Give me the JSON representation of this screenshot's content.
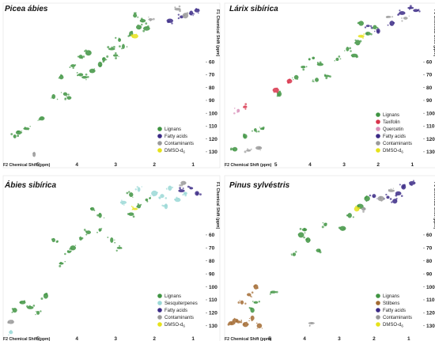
{
  "chart_data": [
    {
      "type": "scatter",
      "title": "Picea ábies",
      "xlabel": "F2 Chemical Shift (ppm)",
      "ylabel": "F1 Chemical Shift (ppm)",
      "xlim": [
        5.9,
        0.8
      ],
      "ylim": [
        18,
        135
      ],
      "x_ticks": [
        5,
        4,
        3,
        2,
        1
      ],
      "y_ticks": [
        60,
        70,
        80,
        90,
        100,
        110,
        120,
        130
      ],
      "legend_position": "bottom-right",
      "series": [
        {
          "name": "Lignans",
          "color": "#3f9442",
          "points": [
            [
              5.5,
              115
            ],
            [
              5.3,
              112
            ],
            [
              5.6,
              118
            ],
            [
              4.9,
              104
            ],
            [
              4.3,
              85
            ],
            [
              4.1,
              63
            ],
            [
              3.9,
              56
            ],
            [
              3.8,
              72
            ],
            [
              3.6,
              67
            ],
            [
              3.4,
              62
            ],
            [
              3.7,
              53
            ],
            [
              3.9,
              70
            ],
            [
              4.4,
              72
            ],
            [
              2.9,
              43
            ],
            [
              2.6,
              38
            ],
            [
              2.8,
              48
            ],
            [
              3.1,
              50
            ],
            [
              2.4,
              33
            ],
            [
              2.3,
              28
            ],
            [
              2.5,
              24
            ],
            [
              3.3,
              58
            ],
            [
              4.6,
              87
            ],
            [
              4.2,
              88
            ],
            [
              3.0,
              55
            ],
            [
              2.2,
              34
            ]
          ]
        },
        {
          "name": "Fatty acids",
          "color": "#3b2a86",
          "points": [
            [
              1.3,
              25
            ],
            [
              1.05,
              22
            ],
            [
              0.9,
              20
            ],
            [
              1.6,
              28
            ]
          ]
        },
        {
          "name": "Contaminants",
          "color": "#9a9a9a",
          "points": [
            [
              1.4,
              19
            ],
            [
              1.2,
              24
            ],
            [
              2.1,
              27
            ],
            [
              5.1,
              132
            ]
          ]
        },
        {
          "name": "DMSO-d6",
          "color": "#e6e21a",
          "points": [
            [
              2.5,
              40
            ]
          ]
        }
      ]
    },
    {
      "type": "scatter",
      "title": "Lárix sibírica",
      "xlabel": "F2 Chemical Shift (ppm)",
      "ylabel": "F1 Chemical Shift (ppm)",
      "xlim": [
        6.5,
        0.8
      ],
      "ylim": [
        18,
        135
      ],
      "x_ticks": [
        5,
        4,
        3,
        2,
        1
      ],
      "y_ticks": [
        60,
        70,
        80,
        90,
        100,
        110,
        120,
        130
      ],
      "legend_position": "bottom-right",
      "series": [
        {
          "name": "Lignans",
          "color": "#3f9442",
          "points": [
            [
              6.2,
              128
            ],
            [
              5.9,
              118
            ],
            [
              5.6,
              113
            ],
            [
              5.4,
              112
            ],
            [
              4.4,
              72
            ],
            [
              4.2,
              64
            ],
            [
              3.9,
              57
            ],
            [
              3.7,
              62
            ],
            [
              3.5,
              71
            ],
            [
              3.8,
              74
            ],
            [
              4.9,
              85
            ],
            [
              2.9,
              50
            ],
            [
              2.6,
              45
            ],
            [
              2.3,
              38
            ],
            [
              2.1,
              33
            ],
            [
              2.5,
              30
            ],
            [
              3.2,
              58
            ],
            [
              2.7,
              55
            ]
          ]
        },
        {
          "name": "Taxifolin",
          "color": "#d8344b",
          "points": [
            [
              5.0,
              82
            ],
            [
              5.9,
              95
            ],
            [
              4.6,
              75
            ]
          ]
        },
        {
          "name": "Quercetin",
          "color": "#d88fb8",
          "points": [
            [
              6.1,
              98
            ]
          ]
        },
        {
          "name": "Fatty acids",
          "color": "#3b2a86",
          "points": [
            [
              1.3,
              22
            ],
            [
              1.05,
              18
            ],
            [
              0.9,
              20
            ],
            [
              1.6,
              30
            ],
            [
              2.3,
              32
            ],
            [
              2.0,
              36
            ]
          ]
        },
        {
          "name": "Contaminants",
          "color": "#9a9a9a",
          "points": [
            [
              1.7,
              25
            ],
            [
              1.2,
              26
            ],
            [
              5.8,
              129
            ],
            [
              5.5,
              127
            ]
          ]
        },
        {
          "name": "DMSO-d6",
          "color": "#e6e21a",
          "points": [
            [
              2.5,
              40
            ]
          ]
        }
      ]
    },
    {
      "type": "scatter",
      "title": "Ábies sibírica",
      "xlabel": "F2 Chemical Shift (ppm)",
      "ylabel": "F1 Chemical Shift (ppm)",
      "xlim": [
        5.9,
        0.8
      ],
      "ylim": [
        18,
        135
      ],
      "x_ticks": [
        5,
        4,
        3,
        2,
        1
      ],
      "y_ticks": [
        60,
        70,
        80,
        90,
        100,
        110,
        120,
        130
      ],
      "legend_position": "bottom-right",
      "series": [
        {
          "name": "Lignans",
          "color": "#3f9442",
          "points": [
            [
              5.6,
              118
            ],
            [
              5.4,
              112
            ],
            [
              5.2,
              116
            ],
            [
              5.0,
              120
            ],
            [
              4.8,
              107
            ],
            [
              4.4,
              82
            ],
            [
              4.1,
              70
            ],
            [
              3.9,
              63
            ],
            [
              3.7,
              58
            ],
            [
              3.4,
              56
            ],
            [
              3.1,
              64
            ],
            [
              2.9,
              70
            ],
            [
              2.6,
              44
            ],
            [
              2.4,
              38
            ],
            [
              3.6,
              40
            ],
            [
              3.4,
              45
            ],
            [
              4.6,
              64
            ],
            [
              4.2,
              73
            ],
            [
              2.2,
              33
            ],
            [
              2.6,
              29
            ]
          ]
        },
        {
          "name": "Sesquiterpenes",
          "color": "#9ad8d6",
          "points": [
            [
              2.4,
              25
            ],
            [
              2.0,
              28
            ],
            [
              1.8,
              30
            ],
            [
              1.7,
              38
            ],
            [
              1.6,
              24
            ],
            [
              1.4,
              33
            ],
            [
              1.2,
              28
            ],
            [
              2.8,
              35
            ],
            [
              5.7,
              135
            ]
          ]
        },
        {
          "name": "Fatty acids",
          "color": "#3b2a86",
          "points": [
            [
              1.3,
              26
            ],
            [
              1.05,
              24
            ],
            [
              0.9,
              28
            ]
          ]
        },
        {
          "name": "Contaminants",
          "color": "#9a9a9a",
          "points": [
            [
              1.25,
              20
            ],
            [
              5.7,
              127
            ]
          ]
        },
        {
          "name": "DMSO-d6",
          "color": "#e6e21a",
          "points": [
            [
              2.5,
              40
            ]
          ]
        }
      ]
    },
    {
      "type": "scatter",
      "title": "Pinus sylvéstris",
      "xlabel": "F2 Chemical Shift (ppm)",
      "ylabel": "F1 Chemical Shift (ppm)",
      "xlim": [
        6.3,
        0.7
      ],
      "ylim": [
        18,
        135
      ],
      "x_ticks": [
        5,
        4,
        3,
        2,
        1
      ],
      "y_ticks": [
        60,
        70,
        80,
        90,
        100,
        110,
        120,
        130
      ],
      "legend_position": "bottom-right",
      "series": [
        {
          "name": "Lignans",
          "color": "#3f9442",
          "points": [
            [
              5.5,
              118
            ],
            [
              5.4,
              112
            ],
            [
              4.9,
              104
            ],
            [
              4.1,
              60
            ],
            [
              4.0,
              56
            ],
            [
              3.9,
              64
            ],
            [
              3.6,
              72
            ],
            [
              4.3,
              75
            ],
            [
              2.7,
              45
            ],
            [
              2.4,
              38
            ],
            [
              2.2,
              32
            ],
            [
              3.4,
              52
            ],
            [
              2.9,
              55
            ]
          ]
        },
        {
          "name": "Stilbens",
          "color": "#a36b32",
          "points": [
            [
              6.1,
              128
            ],
            [
              5.9,
              127
            ],
            [
              5.7,
              129
            ],
            [
              5.5,
              124
            ],
            [
              5.3,
              130
            ],
            [
              5.8,
              112
            ],
            [
              5.6,
              106
            ],
            [
              5.4,
              100
            ],
            [
              6.0,
              126
            ]
          ]
        },
        {
          "name": "Fatty acids",
          "color": "#3b2a86",
          "points": [
            [
              1.3,
              28
            ],
            [
              1.15,
              23
            ],
            [
              0.9,
              20
            ],
            [
              1.6,
              31
            ],
            [
              2.0,
              30
            ],
            [
              1.4,
              34
            ]
          ]
        },
        {
          "name": "Contaminants",
          "color": "#9a9a9a",
          "points": [
            [
              1.8,
              32
            ],
            [
              2.3,
              40
            ],
            [
              1.5,
              26
            ],
            [
              3.8,
              128
            ]
          ]
        },
        {
          "name": "DMSO-d6",
          "color": "#e6e21a",
          "points": [
            [
              2.5,
              40
            ]
          ]
        }
      ]
    }
  ],
  "legend_subscript": "6"
}
